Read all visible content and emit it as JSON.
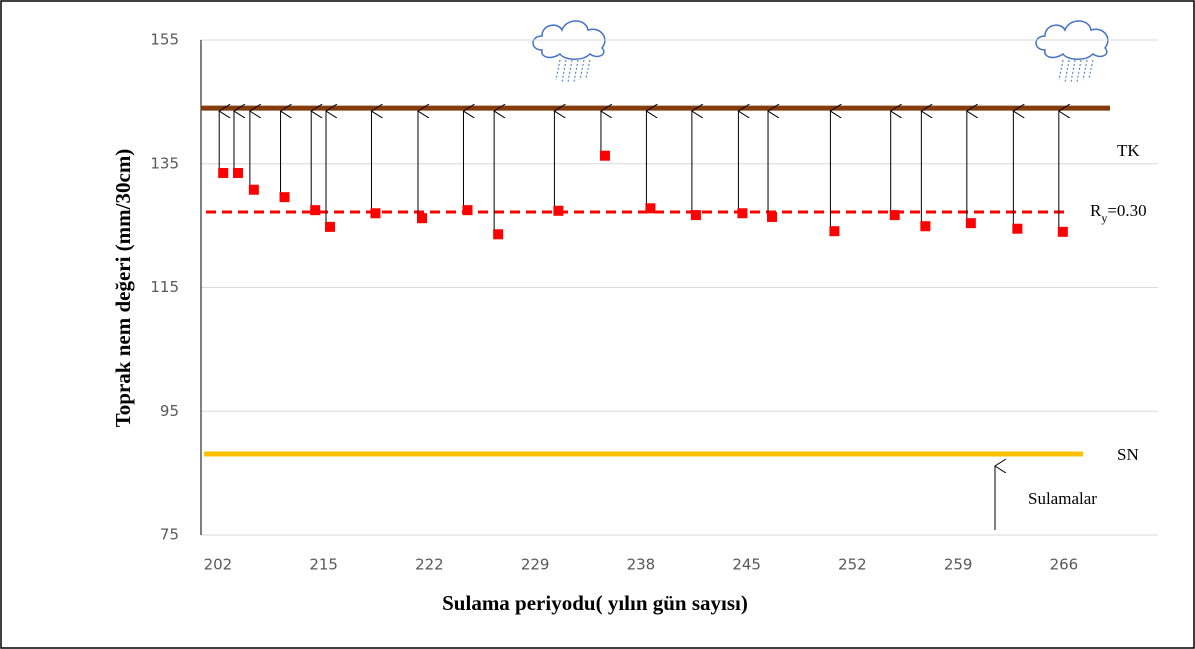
{
  "chart_data": {
    "type": "scatter",
    "x_label": "Sulama periyodu( yılın gün sayısı)",
    "y_label": "Toprak nem değeri (mm/30cm)",
    "xlim": [
      -0.16,
      8.89
    ],
    "xticks": [
      {
        "value": 0,
        "label": "202"
      },
      {
        "value": 1,
        "label": "215"
      },
      {
        "value": 2,
        "label": "222"
      },
      {
        "value": 3,
        "label": "229"
      },
      {
        "value": 4,
        "label": "238"
      },
      {
        "value": 5,
        "label": "245"
      },
      {
        "value": 6,
        "label": "252"
      },
      {
        "value": 7,
        "label": "259"
      },
      {
        "value": 8,
        "label": "266"
      }
    ],
    "ylim": [
      75,
      155
    ],
    "yticks": [
      75,
      95,
      115,
      135,
      155
    ],
    "grid": true,
    "color": "#ff0000",
    "x": [
      0.05,
      0.19,
      0.34,
      0.63,
      0.92,
      1.06,
      1.49,
      1.93,
      2.36,
      2.65,
      3.22,
      3.66,
      4.09,
      4.52,
      4.96,
      5.24,
      5.83,
      6.4,
      6.69,
      7.12,
      7.56,
      7.99
    ],
    "values": [
      133.5,
      133.5,
      130.8,
      129.6,
      127.5,
      124.8,
      127.0,
      126.2,
      127.5,
      123.6,
      127.4,
      136.3,
      127.8,
      126.7,
      127.0,
      126.4,
      124.1,
      126.7,
      124.9,
      125.4,
      124.5,
      124.0
    ],
    "reference_lines": [
      {
        "name": [
          "TK"
        ],
        "value": 144.0,
        "color": "#843c0c",
        "style": "solid"
      },
      {
        "name": [
          "R",
          "y",
          "=0.30"
        ],
        "value": 127.2,
        "color": "#ff0000",
        "style": "dashed"
      },
      {
        "name": [
          "SN"
        ],
        "value": 88.1,
        "color": "#ffc000",
        "style": "solid"
      }
    ],
    "arrow_legend": "Sulamalar"
  }
}
